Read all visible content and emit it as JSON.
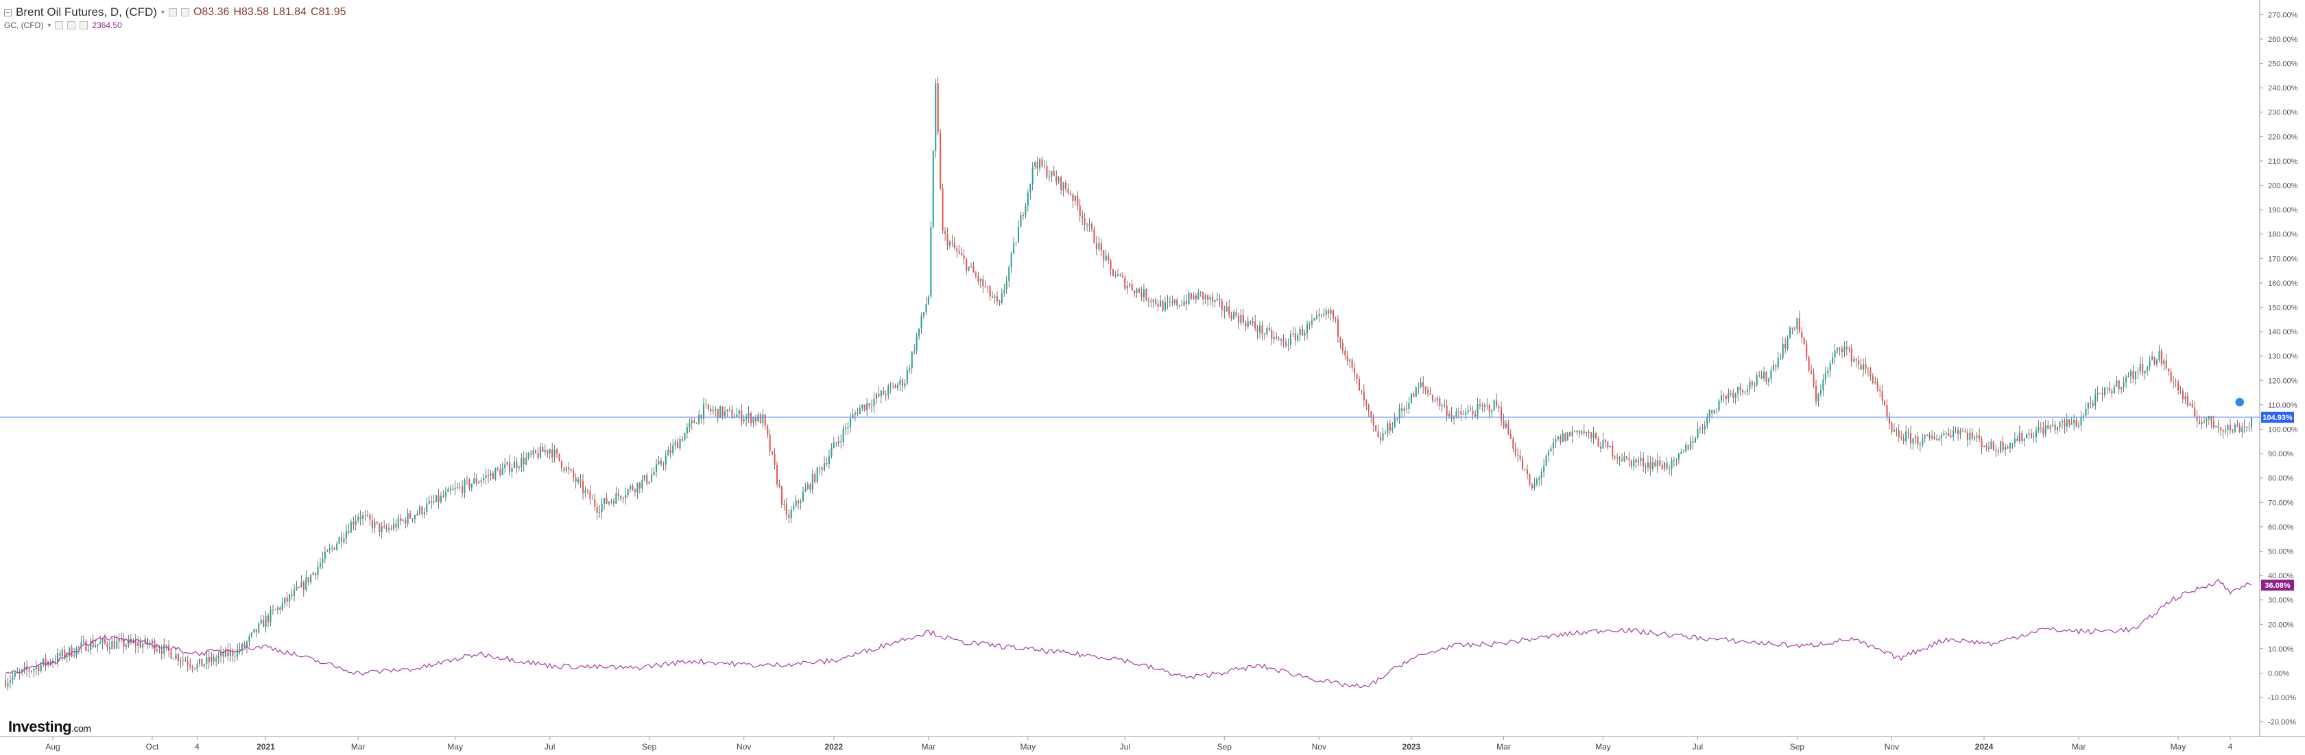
{
  "header": {
    "title": "Brent Oil Futures, D, (CFD)",
    "open": "O83.36",
    "high": "H83.58",
    "low": "L81.84",
    "close": "C81.95",
    "sub_symbol": "GC, (CFD)",
    "sub_value": "2364.50"
  },
  "logo": {
    "main": "Investing",
    "suffix": ".com"
  },
  "colors": {
    "up": "#26a69a",
    "down": "#ef5350",
    "line": "#a53aa5",
    "price_line": "#5b8def",
    "axis_text": "#555555"
  },
  "chart_data": {
    "type": "line",
    "title": "",
    "y_unit": "%",
    "ylim": [
      -26,
      276
    ],
    "y_ticks": [
      "-20.00%",
      "-10.00%",
      "0.00%",
      "10.00%",
      "20.00%",
      "30.00%",
      "40.00%",
      "50.00%",
      "60.00%",
      "70.00%",
      "80.00%",
      "90.00%",
      "100.00%",
      "110.00%",
      "120.00%",
      "130.00%",
      "140.00%",
      "150.00%",
      "160.00%",
      "170.00%",
      "180.00%",
      "190.00%",
      "200.00%",
      "210.00%",
      "220.00%",
      "230.00%",
      "240.00%",
      "250.00%",
      "260.00%",
      "270.00%"
    ],
    "y_tick_values": [
      -20,
      -10,
      0,
      10,
      20,
      30,
      40,
      50,
      60,
      70,
      80,
      90,
      100,
      110,
      120,
      130,
      140,
      150,
      160,
      170,
      180,
      190,
      200,
      210,
      220,
      230,
      240,
      250,
      260,
      270
    ],
    "x_ticks": [
      "Aug",
      "Oct",
      "4",
      "2021",
      "Mar",
      "May",
      "Jul",
      "Sep",
      "Nov",
      "2022",
      "Mar",
      "May",
      "Jul",
      "Sep",
      "Nov",
      "2023",
      "Mar",
      "May",
      "Jul",
      "Sep",
      "Nov",
      "2024",
      "Mar",
      "May",
      "4"
    ],
    "x_tick_index": [
      20,
      62,
      81,
      110,
      149,
      190,
      230,
      272,
      312,
      350,
      390,
      432,
      473,
      515,
      555,
      594,
      633,
      675,
      715,
      757,
      797,
      836,
      876,
      918,
      940
    ],
    "n_bars": 950,
    "series": [
      {
        "name": "Brent Oil Futures, D, (CFD)",
        "kind": "candlestick",
        "anchors_index": [
          0,
          35,
          62,
          81,
          100,
          110,
          125,
          149,
          160,
          190,
          230,
          250,
          272,
          295,
          320,
          330,
          345,
          360,
          380,
          390,
          393,
          396,
          420,
          435,
          450,
          467,
          473,
          490,
          505,
          540,
          560,
          580,
          598,
          612,
          630,
          645,
          655,
          665,
          685,
          705,
          725,
          745,
          757,
          765,
          775,
          790,
          797,
          810,
          825,
          840,
          860,
          876,
          880,
          895,
          910,
          925,
          940,
          949
        ],
        "anchors_value": [
          -3,
          12,
          12,
          3,
          10,
          22,
          35,
          65,
          58,
          75,
          92,
          68,
          80,
          108,
          104,
          63,
          85,
          108,
          120,
          155,
          240,
          180,
          150,
          210,
          197,
          165,
          160,
          150,
          155,
          135,
          148,
          95,
          118,
          105,
          110,
          75,
          95,
          100,
          87,
          85,
          113,
          122,
          145,
          113,
          135,
          120,
          98,
          95,
          100,
          92,
          100,
          103,
          110,
          120,
          130,
          105,
          100,
          102
        ],
        "last_value": 104.93,
        "last_label": "104.93%"
      },
      {
        "name": "GC, (CFD)",
        "kind": "line",
        "anchors_index": [
          0,
          20,
          40,
          60,
          81,
          110,
          149,
          175,
          200,
          230,
          265,
          290,
          320,
          350,
          390,
          402,
          430,
          470,
          500,
          530,
          560,
          575,
          592,
          610,
          630,
          660,
          680,
          720,
          760,
          780,
          800,
          820,
          840,
          860,
          880,
          900,
          915,
          925,
          935,
          940,
          945
        ],
        "anchors_value": [
          0,
          4,
          15,
          12,
          8,
          11,
          0,
          2,
          8,
          3,
          2,
          5,
          3,
          5,
          17,
          13,
          10,
          6,
          -2,
          3,
          -4,
          -6,
          5,
          11,
          12,
          16,
          18,
          14,
          11,
          14,
          6,
          14,
          12,
          18,
          17,
          18,
          30,
          34,
          38,
          33,
          36
        ],
        "last_value": 36.08,
        "last_label": "36.08%"
      }
    ]
  }
}
